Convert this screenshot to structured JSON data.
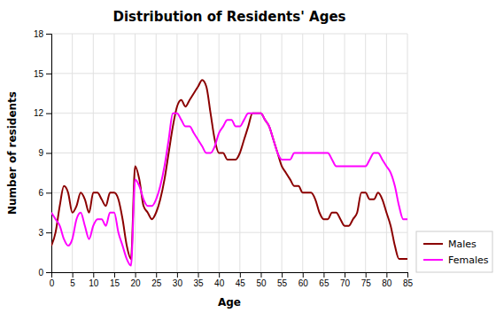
{
  "chart_data": {
    "type": "line",
    "title": "Distribution of Residents' Ages",
    "xlabel": "Age",
    "ylabel": "Number of residents",
    "x": [
      0,
      1,
      2,
      3,
      4,
      5,
      6,
      7,
      8,
      9,
      10,
      11,
      12,
      13,
      14,
      15,
      16,
      17,
      18,
      19,
      20,
      21,
      22,
      23,
      24,
      25,
      26,
      27,
      28,
      29,
      30,
      31,
      32,
      33,
      34,
      35,
      36,
      37,
      38,
      39,
      40,
      41,
      42,
      43,
      44,
      45,
      46,
      47,
      48,
      49,
      50,
      51,
      52,
      53,
      54,
      55,
      56,
      57,
      58,
      59,
      60,
      61,
      62,
      63,
      64,
      65,
      66,
      67,
      68,
      69,
      70,
      71,
      72,
      73,
      74,
      75,
      76,
      77,
      78,
      79,
      80,
      81,
      82,
      83,
      84,
      85
    ],
    "series": [
      {
        "name": "Males",
        "color": "#8B0000",
        "values": [
          2.0,
          3.0,
          5.0,
          6.5,
          6.0,
          4.5,
          5.0,
          6.0,
          5.5,
          4.5,
          6.0,
          6.0,
          5.5,
          5.0,
          6.0,
          6.0,
          5.5,
          4.0,
          2.0,
          1.0,
          8.0,
          7.0,
          5.0,
          4.5,
          4.0,
          4.5,
          5.5,
          7.0,
          9.0,
          11.0,
          12.5,
          13.0,
          12.5,
          13.0,
          13.5,
          14.0,
          14.5,
          14.0,
          12.0,
          10.0,
          9.0,
          9.0,
          8.5,
          8.5,
          8.5,
          9.0,
          10.0,
          11.0,
          12.0,
          12.0,
          12.0,
          11.5,
          11.0,
          10.0,
          9.0,
          8.0,
          7.5,
          7.0,
          6.5,
          6.5,
          6.0,
          6.0,
          6.0,
          5.5,
          4.5,
          4.0,
          4.0,
          4.5,
          4.5,
          4.0,
          3.5,
          3.5,
          4.0,
          4.5,
          6.0,
          6.0,
          5.5,
          5.5,
          6.0,
          5.5,
          4.5,
          3.5,
          2.0,
          1.0,
          1.0,
          1.0
        ]
      },
      {
        "name": "Females",
        "color": "#FF00FF",
        "values": [
          4.5,
          4.0,
          3.5,
          2.5,
          2.0,
          2.5,
          4.0,
          4.5,
          3.5,
          2.5,
          3.5,
          4.0,
          4.0,
          3.5,
          4.5,
          4.5,
          3.0,
          2.0,
          1.0,
          0.5,
          7.0,
          6.5,
          5.5,
          5.0,
          5.0,
          5.5,
          6.5,
          8.0,
          10.0,
          12.0,
          12.0,
          11.5,
          11.0,
          11.0,
          10.5,
          10.0,
          9.5,
          9.0,
          9.0,
          9.5,
          10.5,
          11.0,
          11.5,
          11.5,
          11.0,
          11.0,
          11.5,
          12.0,
          12.0,
          12.0,
          12.0,
          11.5,
          11.0,
          10.0,
          9.0,
          8.5,
          8.5,
          8.5,
          9.0,
          9.0,
          9.0,
          9.0,
          9.0,
          9.0,
          9.0,
          9.0,
          9.0,
          8.5,
          8.0,
          8.0,
          8.0,
          8.0,
          8.0,
          8.0,
          8.0,
          8.0,
          8.5,
          9.0,
          9.0,
          8.5,
          8.0,
          7.5,
          6.5,
          5.0,
          4.0,
          4.0
        ]
      }
    ],
    "xlim": [
      0,
      85
    ],
    "ylim": [
      0,
      18
    ],
    "xticks": [
      0,
      5,
      10,
      15,
      20,
      25,
      30,
      35,
      40,
      45,
      50,
      55,
      60,
      65,
      70,
      75,
      80,
      85
    ],
    "yticks": [
      0,
      3,
      6,
      9,
      12,
      15,
      18
    ],
    "grid": true,
    "legend": "lower right"
  }
}
